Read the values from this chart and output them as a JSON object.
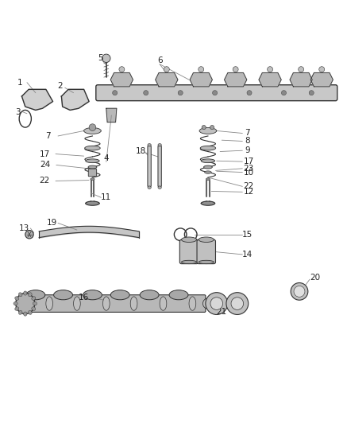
{
  "bg_color": "#ffffff",
  "line_color": "#333333",
  "fig_width": 4.37,
  "fig_height": 5.33,
  "dpi": 100
}
